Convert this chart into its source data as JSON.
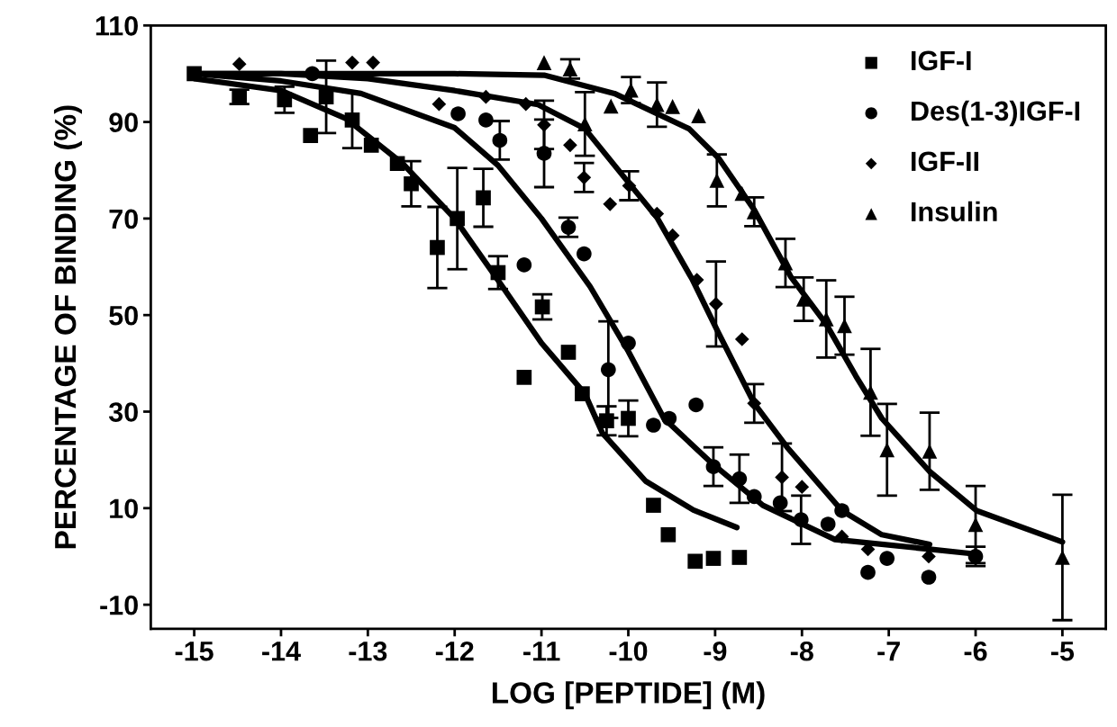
{
  "chart_data": {
    "type": "scatter",
    "xlabel": "LOG [PEPTIDE] (M)",
    "ylabel": "PERCENTAGE OF BINDING (%)",
    "xlim": [
      -15.5,
      -4.5
    ],
    "xticks": [
      -15,
      -14,
      -13,
      -12,
      -11,
      -10,
      -9,
      -8,
      -7,
      -6,
      -5
    ],
    "ylim": [
      -15,
      110
    ],
    "yticks": [
      -10,
      10,
      30,
      50,
      70,
      90,
      110
    ],
    "grid": false,
    "legend": "top right",
    "series": [
      {
        "name": "IGF-I",
        "marker": "square",
        "color": "#000000",
        "x": [
          -15,
          -14.48,
          -13.96,
          -13.66,
          -13.48,
          -13.18,
          -12.96,
          -12.66,
          -12.5,
          -12.2,
          -11.97,
          -11.67,
          -11.5,
          -11.2,
          -10.99,
          -10.69,
          -10.53,
          -10.25,
          -10.0,
          -9.71,
          -9.54,
          -9.23,
          -9.02,
          -8.72
        ],
        "values": [
          100,
          95.2,
          94.6,
          87.2,
          95.2,
          90.4,
          85.2,
          81.4,
          77.2,
          64,
          70,
          74.3,
          58.8,
          37.1,
          51.7,
          42.3,
          33.7,
          28.1,
          28.6,
          10.6,
          4.5,
          -1.0,
          -0.4,
          -0.2
        ],
        "errors": [
          null,
          1.5,
          2.7,
          null,
          7.5,
          5.8,
          null,
          null,
          4.7,
          8.4,
          10.5,
          6,
          3.4,
          null,
          2.6,
          null,
          null,
          3,
          3.7,
          null,
          null,
          null,
          null,
          null
        ]
      },
      {
        "name": "Des(1-3)IGF-I",
        "marker": "circle",
        "color": "#000000",
        "x": [
          -13.64,
          -11.96,
          -11.64,
          -11.48,
          -11.2,
          -10.97,
          -10.69,
          -10.51,
          -10.23,
          -10.0,
          -9.71,
          -9.53,
          -9.22,
          -9.02,
          -8.72,
          -8.55,
          -8.25,
          -8.01,
          -7.7,
          -7.54,
          -7.24,
          -7.02,
          -6.54,
          -6.0
        ],
        "values": [
          100,
          91.7,
          90.4,
          86.2,
          60.4,
          83.5,
          68.2,
          62.7,
          38.7,
          44.2,
          27.2,
          28.6,
          31.4,
          18.6,
          16.1,
          12.4,
          11.1,
          7.6,
          6.7,
          9.5,
          -3.3,
          -0.4,
          -4.3,
          0
        ],
        "errors": [
          null,
          null,
          null,
          4,
          null,
          7,
          2,
          null,
          10,
          null,
          null,
          null,
          null,
          4,
          5,
          null,
          null,
          5,
          null,
          null,
          null,
          null,
          null,
          2
        ]
      },
      {
        "name": "IGF-II",
        "marker": "diamond",
        "color": "#000000",
        "x": [
          -14.48,
          -13.18,
          -12.94,
          -12.18,
          -11.64,
          -11.18,
          -10.97,
          -10.67,
          -10.51,
          -10.21,
          -9.99,
          -9.67,
          -9.49,
          -9.21,
          -8.99,
          -8.69,
          -8.55,
          -8.23,
          -8.0,
          -7.54,
          -7.24,
          -6.54
        ],
        "values": [
          102,
          102.3,
          102.3,
          93.7,
          95.2,
          93.7,
          89.4,
          85.2,
          78.5,
          73,
          76.8,
          71,
          66.5,
          57.3,
          52.3,
          45,
          31.7,
          16.4,
          14.4,
          4.1,
          1.5,
          0
        ],
        "errors": [
          null,
          null,
          null,
          null,
          null,
          null,
          5,
          null,
          3,
          null,
          3,
          null,
          null,
          null,
          8.8,
          null,
          4,
          7,
          null,
          null,
          null,
          null
        ]
      },
      {
        "name": "Insulin",
        "marker": "triangle",
        "color": "#000000",
        "x": [
          -10.97,
          -10.67,
          -10.5,
          -10.2,
          -9.97,
          -9.67,
          -9.49,
          -9.19,
          -8.98,
          -8.69,
          -8.55,
          -8.19,
          -7.98,
          -7.72,
          -7.51,
          -7.21,
          -7.02,
          -6.53,
          -6.0,
          -5.0
        ],
        "values": [
          102.3,
          101,
          89.6,
          93.3,
          96.6,
          93.6,
          93.2,
          91.3,
          77.9,
          75.2,
          71.4,
          60.8,
          53.3,
          49.2,
          47.8,
          34,
          22.1,
          21.8,
          6.6,
          -0.2
        ],
        "errors": [
          null,
          2,
          6.6,
          null,
          2.7,
          4.6,
          null,
          null,
          5.4,
          null,
          3,
          5,
          4.5,
          8,
          6,
          9,
          9.5,
          8,
          8,
          13
        ]
      },
      {
        "type": "line",
        "marker": "none",
        "line_style": "solid",
        "color": "#000000",
        "x": [
          -15,
          -14,
          -13.25,
          -12.6,
          -12,
          -11.5,
          -11,
          -10.5,
          -10.3,
          -9.8,
          -9.25,
          -8.75
        ],
        "values": [
          99,
          96.5,
          90.7,
          81.4,
          70,
          57.2,
          44.2,
          33.7,
          25.6,
          15.6,
          9.6,
          6
        ]
      },
      {
        "type": "line",
        "marker": "none",
        "line_style": "solid",
        "color": "#000000",
        "x": [
          -15,
          -14,
          -13.08,
          -12,
          -11.5,
          -11,
          -10.44,
          -10,
          -9.59,
          -9.05,
          -8.45,
          -7.62,
          -6.53,
          -6
        ],
        "values": [
          100,
          98.5,
          95.9,
          88.8,
          81,
          70,
          55.9,
          42.5,
          28.6,
          19.5,
          10.6,
          3.5,
          1.5,
          0.5
        ]
      },
      {
        "type": "line",
        "marker": "none",
        "line_style": "solid",
        "color": "#000000",
        "x": [
          -15,
          -14,
          -13,
          -12,
          -11.04,
          -10.5,
          -10,
          -9.67,
          -9.26,
          -8.97,
          -8.55,
          -8.17,
          -7.54,
          -7.08,
          -6.53
        ],
        "values": [
          100,
          100,
          99,
          96.5,
          93.6,
          88.6,
          77.5,
          70.2,
          57.3,
          46.6,
          31.7,
          22.6,
          9.5,
          4.5,
          2.5
        ]
      },
      {
        "type": "line",
        "marker": "none",
        "line_style": "solid",
        "color": "#000000",
        "x": [
          -15,
          -13,
          -12,
          -10.97,
          -10.16,
          -9.3,
          -8.96,
          -8.55,
          -8.13,
          -7.72,
          -7.38,
          -7.08,
          -6.53,
          -5.99,
          -5
        ],
        "values": [
          100,
          100,
          100,
          99.7,
          95.9,
          88.6,
          82.5,
          71.8,
          58,
          48.1,
          37.4,
          28.6,
          17.6,
          9.5,
          3
        ]
      }
    ]
  }
}
